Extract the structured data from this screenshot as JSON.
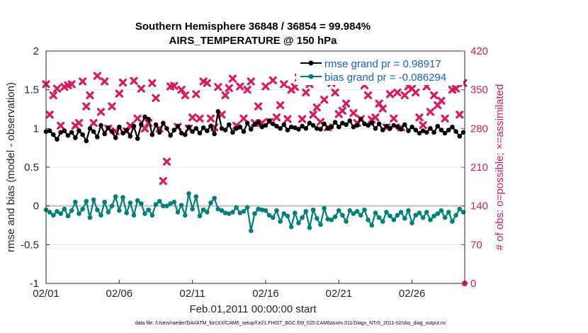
{
  "chart_data": {
    "type": "line",
    "title_line1": "Southern Hemisphere 36848 / 36854 = 99.984%",
    "title_line2": "AIRS_TEMPERATURE @ 150 hPa",
    "xlabel": "Feb.01,2011 00:00:00 start",
    "ylabel_left": "rmse and bias (model - observation)",
    "ylabel_right": "# of obs: o=possible; ×=assimilated",
    "ylim_left": [
      -1,
      2
    ],
    "ylim_right": [
      0,
      420
    ],
    "xlim": [
      0,
      28.6
    ],
    "yticks_left": [
      "-1",
      "-0.5",
      "0",
      "0.5",
      "1",
      "1.5",
      "2"
    ],
    "yticks_left_values": [
      -1,
      -0.5,
      0,
      0.5,
      1,
      1.5,
      2
    ],
    "yticks_right": [
      "0",
      "70",
      "140",
      "210",
      "280",
      "350",
      "420"
    ],
    "yticks_right_values": [
      0,
      70,
      140,
      210,
      280,
      350,
      420
    ],
    "xticks": [
      "02/01",
      "02/06",
      "02/11",
      "02/16",
      "02/21",
      "02/26"
    ],
    "xticks_values": [
      0,
      5,
      10,
      15,
      20,
      25
    ],
    "legend_position": "top-right",
    "footer": "data file: /Users/raeder/DAI/ATM_forcXX/CAM6_setup/f.e21.FHIST_BGC.f09_025.CAM6assim.011/Diags_NTrS_2011-02/obs_diag_output.nc",
    "series": [
      {
        "name": "rmse",
        "legend": "rmse grand pr = 0.98917",
        "color": "#000000",
        "x": [
          0.0,
          0.25,
          0.5,
          0.75,
          1.0,
          1.25,
          1.5,
          1.75,
          2.0,
          2.25,
          2.5,
          2.75,
          3.0,
          3.25,
          3.5,
          3.75,
          4.0,
          4.25,
          4.5,
          4.75,
          5.0,
          5.25,
          5.5,
          5.75,
          6.0,
          6.25,
          6.5,
          6.75,
          7.0,
          7.25,
          7.5,
          7.75,
          8.0,
          8.25,
          8.5,
          8.75,
          9.0,
          9.25,
          9.5,
          9.75,
          10.0,
          10.25,
          10.5,
          10.75,
          11.0,
          11.25,
          11.5,
          11.75,
          12.0,
          12.25,
          12.5,
          12.75,
          13.0,
          13.25,
          13.5,
          13.75,
          14.0,
          14.25,
          14.5,
          14.75,
          15.0,
          15.25,
          15.5,
          15.75,
          16.0,
          16.25,
          16.5,
          16.75,
          17.0,
          17.25,
          17.5,
          17.75,
          18.0,
          18.25,
          18.5,
          18.75,
          19.0,
          19.25,
          19.5,
          19.75,
          20.0,
          20.25,
          20.5,
          20.75,
          21.0,
          21.25,
          21.5,
          21.75,
          22.0,
          22.25,
          22.5,
          22.75,
          23.0,
          23.25,
          23.5,
          23.75,
          24.0,
          24.25,
          24.5,
          24.75,
          25.0,
          25.25,
          25.5,
          25.75,
          26.0,
          26.25,
          26.5,
          26.75,
          27.0,
          27.25,
          27.5,
          27.75,
          28.0,
          28.25,
          28.5
        ],
        "values": [
          0.96,
          0.97,
          0.92,
          0.86,
          0.95,
          0.97,
          0.91,
          0.95,
          0.88,
          0.97,
          0.92,
          0.84,
          1.0,
          0.96,
          0.89,
          1.04,
          0.93,
          1.01,
          0.96,
          0.88,
          1.02,
          0.94,
          0.98,
          0.9,
          1.03,
          0.87,
          1.05,
          1.15,
          1.12,
          0.92,
          1.05,
          0.95,
          1.07,
          1.0,
          0.91,
          0.98,
          1.03,
          0.94,
          0.92,
          1.02,
          0.96,
          1.0,
          0.94,
          1.01,
          0.97,
          1.03,
          0.93,
          1.22,
          1.0,
          0.98,
          1.05,
          0.95,
          1.0,
          1.02,
          0.96,
          1.07,
          0.99,
          1.05,
          1.08,
          1.02,
          1.04,
          1.1,
          1.06,
          1.03,
          1.0,
          1.05,
          0.98,
          1.02,
          1.01,
          0.99,
          1.03,
          1.0,
          1.07,
          1.04,
          1.0,
          0.99,
          1.06,
          1.0,
          1.02,
          1.08,
          1.02,
          1.07,
          1.05,
          1.1,
          1.02,
          1.04,
          1.12,
          1.06,
          1.04,
          1.07,
          1.0,
          1.06,
          0.98,
          1.03,
          1.0,
          1.04,
          1.02,
          0.99,
          1.05,
          0.97,
          1.02,
          0.98,
          0.94,
          0.97,
          0.95,
          1.0,
          0.95,
          1.03,
          0.98,
          0.94,
          0.98,
          1.02,
          0.96,
          0.9,
          0.95
        ]
      },
      {
        "name": "bias",
        "legend": "bias grand pr = -0.086294",
        "color": "#00807a",
        "x": [
          0.0,
          0.25,
          0.5,
          0.75,
          1.0,
          1.25,
          1.5,
          1.75,
          2.0,
          2.25,
          2.5,
          2.75,
          3.0,
          3.25,
          3.5,
          3.75,
          4.0,
          4.25,
          4.5,
          4.75,
          5.0,
          5.25,
          5.5,
          5.75,
          6.0,
          6.25,
          6.5,
          6.75,
          7.0,
          7.25,
          7.5,
          7.75,
          8.0,
          8.25,
          8.5,
          8.75,
          9.0,
          9.25,
          9.5,
          9.75,
          10.0,
          10.25,
          10.5,
          10.75,
          11.0,
          11.25,
          11.5,
          11.75,
          12.0,
          12.25,
          12.5,
          12.75,
          13.0,
          13.25,
          13.5,
          13.75,
          14.0,
          14.25,
          14.5,
          14.75,
          15.0,
          15.25,
          15.5,
          15.75,
          16.0,
          16.25,
          16.5,
          16.75,
          17.0,
          17.25,
          17.5,
          17.75,
          18.0,
          18.25,
          18.5,
          18.75,
          19.0,
          19.25,
          19.5,
          19.75,
          20.0,
          20.25,
          20.5,
          20.75,
          21.0,
          21.25,
          21.5,
          21.75,
          22.0,
          22.25,
          22.5,
          22.75,
          23.0,
          23.25,
          23.5,
          23.75,
          24.0,
          24.25,
          24.5,
          24.75,
          25.0,
          25.25,
          25.5,
          25.75,
          26.0,
          26.25,
          26.5,
          26.75,
          27.0,
          27.25,
          27.5,
          27.75,
          28.0,
          28.25,
          28.5
        ],
        "values": [
          -0.05,
          -0.08,
          -0.12,
          -0.07,
          -0.1,
          -0.04,
          -0.13,
          -0.06,
          0.05,
          -0.1,
          -0.04,
          0.06,
          -0.15,
          0.08,
          -0.05,
          -0.12,
          0.05,
          -0.08,
          0.0,
          0.12,
          -0.06,
          0.11,
          -0.09,
          0.04,
          -0.12,
          0.07,
          0.03,
          -0.1,
          -0.05,
          -0.12,
          0.02,
          0.06,
          0.0,
          0.0,
          0.03,
          0.05,
          -0.08,
          0.01,
          -0.12,
          0.16,
          -0.04,
          0.12,
          -0.13,
          -0.05,
          -0.08,
          0.04,
          0.1,
          -0.04,
          -0.06,
          -0.09,
          -0.1,
          -0.08,
          -0.02,
          -0.09,
          -0.07,
          -0.02,
          -0.32,
          -0.1,
          -0.04,
          -0.05,
          -0.06,
          -0.12,
          -0.15,
          -0.06,
          -0.2,
          -0.1,
          -0.13,
          -0.27,
          -0.09,
          -0.22,
          -0.15,
          -0.07,
          -0.28,
          -0.05,
          -0.16,
          -0.24,
          -0.03,
          -0.17,
          -0.18,
          -0.14,
          -0.06,
          -0.12,
          -0.2,
          -0.06,
          -0.1,
          -0.07,
          -0.12,
          -0.05,
          -0.18,
          -0.25,
          -0.09,
          -0.15,
          -0.2,
          -0.08,
          -0.13,
          -0.18,
          -0.12,
          -0.08,
          -0.16,
          -0.06,
          -0.22,
          -0.12,
          -0.09,
          -0.15,
          -0.08,
          -0.18,
          -0.13,
          -0.1,
          -0.06,
          -0.15,
          -0.08,
          -0.2,
          -0.12,
          -0.04,
          -0.08
        ]
      },
      {
        "name": "obs possible",
        "color": "#d81b60",
        "marker": "o",
        "x": [
          28.6
        ],
        "values": [
          0
        ]
      },
      {
        "name": "obs assimilated",
        "color": "#d81b60",
        "marker": "x",
        "x": [
          0.0,
          0.25,
          0.5,
          0.75,
          1.0,
          1.25,
          1.5,
          1.75,
          2.0,
          2.25,
          2.5,
          2.75,
          3.0,
          3.25,
          3.5,
          3.75,
          4.0,
          4.25,
          4.5,
          4.75,
          5.0,
          5.25,
          5.5,
          5.75,
          6.0,
          6.25,
          6.5,
          6.75,
          7.0,
          7.25,
          7.5,
          7.75,
          8.0,
          8.25,
          8.5,
          8.75,
          9.0,
          9.25,
          9.5,
          9.75,
          10.0,
          10.25,
          10.5,
          10.75,
          11.0,
          11.25,
          11.5,
          11.75,
          12.0,
          12.25,
          12.5,
          12.75,
          13.0,
          13.25,
          13.5,
          13.75,
          14.0,
          14.25,
          14.5,
          14.75,
          15.0,
          15.25,
          15.5,
          15.75,
          16.0,
          16.25,
          16.5,
          16.75,
          17.0,
          17.25,
          17.5,
          17.75,
          18.0,
          18.25,
          18.5,
          18.75,
          19.0,
          19.25,
          19.5,
          19.75,
          20.0,
          20.25,
          20.5,
          20.75,
          21.0,
          21.25,
          21.5,
          21.75,
          22.0,
          22.25,
          22.5,
          22.75,
          23.0,
          23.25,
          23.5,
          23.75,
          24.0,
          24.25,
          24.5,
          24.75,
          25.0,
          25.25,
          25.5,
          25.75,
          26.0,
          26.25,
          26.5,
          26.75,
          27.0,
          27.25,
          27.5,
          27.75,
          28.0,
          28.25,
          28.5
        ],
        "values": [
          360,
          305,
          340,
          352,
          285,
          355,
          358,
          360,
          285,
          290,
          365,
          320,
          340,
          290,
          375,
          310,
          365,
          280,
          320,
          275,
          343,
          363,
          275,
          285,
          366,
          298,
          352,
          280,
          290,
          362,
          335,
          280,
          185,
          220,
          356,
          357,
          283,
          350,
          340,
          280,
          300,
          342,
          298,
          365,
          362,
          298,
          282,
          355,
          305,
          340,
          353,
          370,
          285,
          356,
          298,
          350,
          365,
          290,
          320,
          290,
          356,
          292,
          367,
          300,
          322,
          360,
          297,
          350,
          355,
          372,
          297,
          345,
          360,
          305,
          318,
          292,
          332,
          282,
          362,
          345,
          306,
          312,
          325,
          368,
          308,
          290,
          297,
          358,
          340,
          296,
          300,
          325,
          316,
          282,
          342,
          298,
          345,
          282,
          340,
          356,
          352,
          345,
          300,
          286,
          356,
          310,
          340,
          322,
          330,
          298,
          370,
          350,
          352,
          305,
          362
        ]
      }
    ]
  }
}
